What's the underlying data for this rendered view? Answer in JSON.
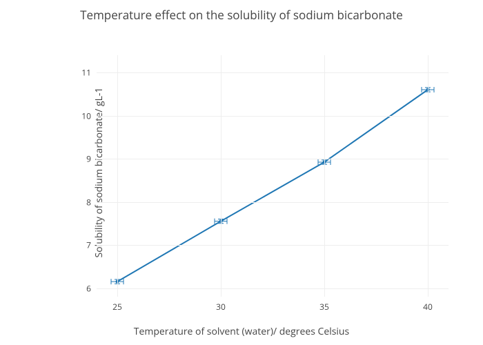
{
  "chart": {
    "type": "line",
    "title": "Temperature effect on the solubility of sodium bicarbonate",
    "title_fontsize": 17,
    "xlabel": "Temperature of solvent (water)/ degrees Celsius",
    "ylabel": "Solubility of sodium bicarbonate/ gL-1",
    "label_fontsize": 14,
    "tick_fontsize": 12,
    "x_values": [
      25,
      30,
      35,
      40
    ],
    "y_values": [
      6.15,
      7.55,
      8.92,
      10.6
    ],
    "x_error": [
      0.3,
      0.3,
      0.3,
      0.3
    ],
    "y_error": [
      0.05,
      0.05,
      0.05,
      0.05
    ],
    "xlim": [
      24,
      41
    ],
    "ylim": [
      5.8,
      11.4
    ],
    "x_ticks": [
      25,
      30,
      35,
      40
    ],
    "y_ticks": [
      6,
      7,
      8,
      9,
      10,
      11
    ],
    "line_color": "#1f77b4",
    "line_width": 2,
    "marker_style": "circle",
    "marker_size": 5,
    "marker_color": "#1f77b4",
    "error_bar_color": "#1f77b4",
    "error_bar_width": 1,
    "error_cap_size": 4,
    "background_color": "#ffffff",
    "grid_color": "#eeeeee",
    "text_color": "#444444"
  }
}
